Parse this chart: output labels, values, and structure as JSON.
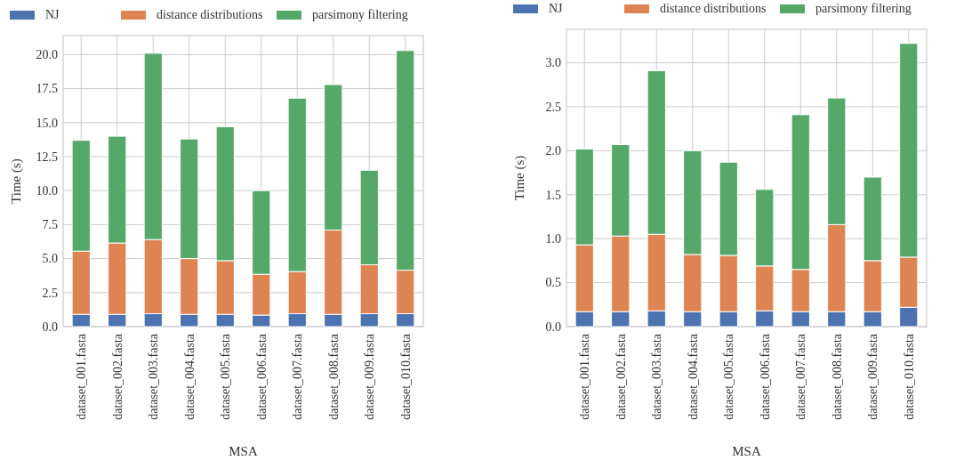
{
  "chart_data": [
    {
      "type": "bar",
      "stacked": true,
      "xlabel": "MSA",
      "ylabel": "Time (s)",
      "categories": [
        "dataset_001.fasta",
        "dataset_002.fasta",
        "dataset_003.fasta",
        "dataset_004.fasta",
        "dataset_005.fasta",
        "dataset_006.fasta",
        "dataset_007.fasta",
        "dataset_008.fasta",
        "dataset_009.fasta",
        "dataset_010.fasta"
      ],
      "series": [
        {
          "name": "NJ",
          "color": "#4c72b0",
          "values": [
            0.9,
            0.9,
            0.95,
            0.9,
            0.9,
            0.85,
            0.95,
            0.9,
            0.95,
            0.95
          ]
        },
        {
          "name": "distance distributions",
          "color": "#dd8452",
          "values": [
            4.65,
            5.25,
            5.45,
            4.1,
            3.95,
            3.0,
            3.1,
            6.2,
            3.6,
            3.2
          ]
        },
        {
          "name": "parsimony filtering",
          "color": "#55a868",
          "values": [
            8.15,
            7.85,
            13.7,
            8.8,
            9.85,
            6.15,
            12.75,
            10.7,
            6.95,
            16.15
          ]
        }
      ],
      "ylim": [
        0,
        21.4
      ],
      "yticks": [
        {
          "value": 0,
          "label": "0.0"
        },
        {
          "value": 2.5,
          "label": "2.5"
        },
        {
          "value": 5,
          "label": "5.0"
        },
        {
          "value": 7.5,
          "label": "7.5"
        },
        {
          "value": 10,
          "label": "10.0"
        },
        {
          "value": 12.5,
          "label": "12.5"
        },
        {
          "value": 15,
          "label": "15.0"
        },
        {
          "value": 17.5,
          "label": "17.5"
        },
        {
          "value": 20,
          "label": "20.0"
        }
      ],
      "grid": true,
      "legend": "top"
    },
    {
      "type": "bar",
      "stacked": true,
      "xlabel": "MSA",
      "ylabel": "Time (s)",
      "categories": [
        "dataset_001.fasta",
        "dataset_002.fasta",
        "dataset_003.fasta",
        "dataset_004.fasta",
        "dataset_005.fasta",
        "dataset_006.fasta",
        "dataset_007.fasta",
        "dataset_008.fasta",
        "dataset_009.fasta",
        "dataset_010.fasta"
      ],
      "series": [
        {
          "name": "NJ",
          "color": "#4c72b0",
          "values": [
            0.17,
            0.17,
            0.18,
            0.17,
            0.17,
            0.18,
            0.17,
            0.17,
            0.17,
            0.22
          ]
        },
        {
          "name": "distance distributions",
          "color": "#dd8452",
          "values": [
            0.76,
            0.86,
            0.87,
            0.65,
            0.64,
            0.51,
            0.48,
            0.99,
            0.58,
            0.57
          ]
        },
        {
          "name": "parsimony filtering",
          "color": "#55a868",
          "values": [
            1.09,
            1.04,
            1.86,
            1.18,
            1.06,
            0.87,
            1.76,
            1.44,
            0.95,
            2.43
          ]
        }
      ],
      "ylim": [
        0,
        3.38
      ],
      "yticks": [
        {
          "value": 0,
          "label": "0.0"
        },
        {
          "value": 0.5,
          "label": "0.5"
        },
        {
          "value": 1,
          "label": "1.0"
        },
        {
          "value": 1.5,
          "label": "1.5"
        },
        {
          "value": 2,
          "label": "2.0"
        },
        {
          "value": 2.5,
          "label": "2.5"
        },
        {
          "value": 3,
          "label": "3.0"
        }
      ],
      "grid": true,
      "legend": "top"
    }
  ]
}
